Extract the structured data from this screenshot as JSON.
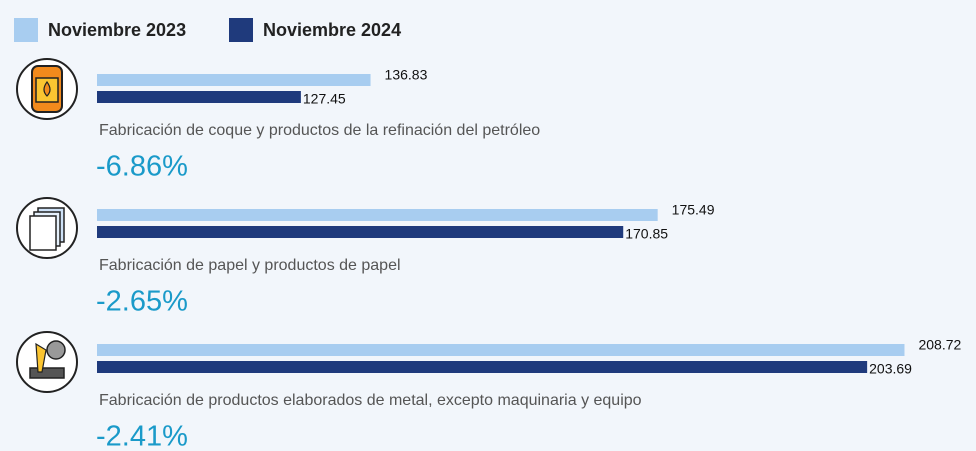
{
  "chart_data": {
    "type": "bar",
    "orientation": "horizontal",
    "categories": [
      "Fabricación de coque y productos de la refinación del petróleo",
      "Fabricación de papel y productos de papel",
      "Fabricación de productos elaborados de metal, excepto maquinaria y equipo"
    ],
    "series": [
      {
        "name": "Noviembre 2023",
        "color": "#a8cdf0",
        "values": [
          136.83,
          175.49,
          208.72
        ]
      },
      {
        "name": "Noviembre 2024",
        "color": "#1f3a7c",
        "values": [
          127.45,
          170.85,
          203.69
        ]
      }
    ],
    "annotations": [
      "-6.86%",
      "-2.65%",
      "-2.41%"
    ],
    "xlim": [
      100,
      210
    ]
  }
}
